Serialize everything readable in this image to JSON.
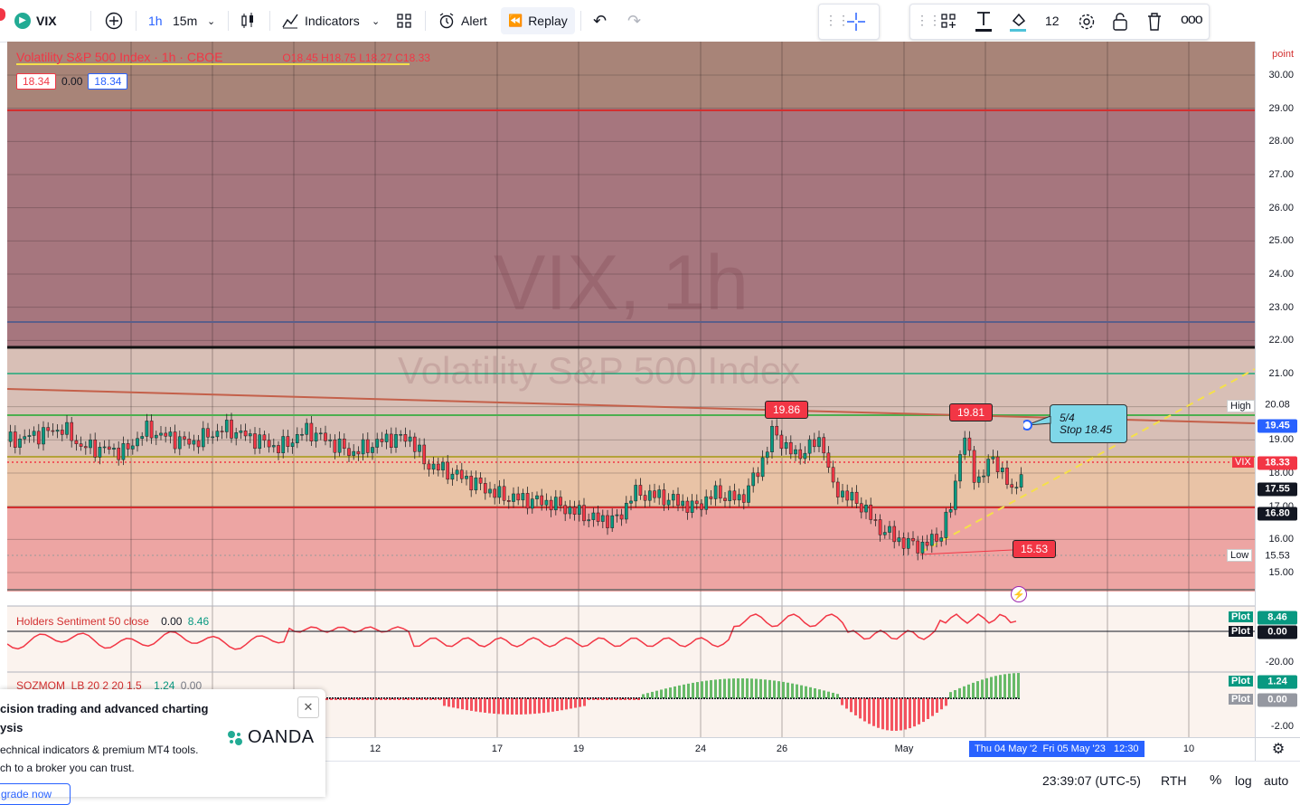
{
  "toolbar": {
    "symbol": "VIX",
    "interval_1": "1h",
    "interval_2": "15m",
    "indicators_label": "Indicators",
    "alert_label": "Alert",
    "replay_label": "Replay",
    "stroke_width": "12"
  },
  "legend": {
    "title": "Volatility S&P 500 Index · 1h · CBOE",
    "o_label": "O",
    "o_value": "18.45",
    "h_label": "H",
    "h_value": "18.75",
    "l_label": "L",
    "l_value": "18.27",
    "c_label": "C",
    "c_value": "18.33",
    "bid": "18.34",
    "spread": "0.00",
    "ask": "18.34"
  },
  "watermark": {
    "symbol": "VIX, 1h",
    "name": "Volatility S&P 500 Index"
  },
  "colors": {
    "up": "#089981",
    "down": "#f23645",
    "zone_top": "#9e6a73",
    "zone_mid": "#d9b8b0",
    "zone_low": "#eec3b4",
    "zone_bottom": "#f0a3a3"
  },
  "annotations": {
    "high_1": "19.86",
    "high_2": "19.81",
    "low_1": "15.53",
    "note_line_1": "5/4",
    "note_line_2": "Stop 18.45"
  },
  "price_axis": {
    "unit": "point",
    "labels": [
      "30.00",
      "29.00",
      "28.00",
      "27.00",
      "26.00",
      "25.00",
      "24.00",
      "23.00",
      "22.00",
      "21.00",
      "20.00",
      "19.00",
      "18.00",
      "17.00",
      "16.00",
      "15.00"
    ],
    "high_tag": "High",
    "high_value": "20.08",
    "line_value": "19.45",
    "symbol_tag": "VIX",
    "last_price": "18.33",
    "level_1": "17.55",
    "level_2": "16.80",
    "low_tag": "Low",
    "low_value": "15.53"
  },
  "sentiment": {
    "label": "Holders Sentiment 50 close",
    "v1": "0.00",
    "v2": "8.46",
    "plot_tag": "Plot",
    "plot_1": "8.46",
    "plot_2": "0.00",
    "axis_label": "-20.00"
  },
  "momentum": {
    "label": "SQZMOM_LB 20 2 20 1.5",
    "v1": "1.24",
    "v2": "0.00",
    "plot_tag": "Plot",
    "plot_1": "1.24",
    "plot_2": "0.00",
    "axis_label": "-2.00"
  },
  "time_axis": {
    "labels": [
      "12",
      "17",
      "19",
      "24",
      "26",
      "May",
      "10"
    ],
    "crosshair_1": "Thu 04 May '2",
    "crosshair_2": "Fri 05 May '23",
    "crosshair_3": "12:30"
  },
  "bottom_bar": {
    "clock": "23:39:07 (UTC-5)",
    "session": "RTH",
    "percent": "%",
    "log": "log",
    "auto": "auto"
  },
  "ad": {
    "line1": "cision trading and advanced charting",
    "line2": "ysis",
    "line3": "echnical indicators & premium MT4 tools.",
    "line4": "ch to a broker you can trust.",
    "cta": "grade now",
    "brand": "OANDA"
  }
}
